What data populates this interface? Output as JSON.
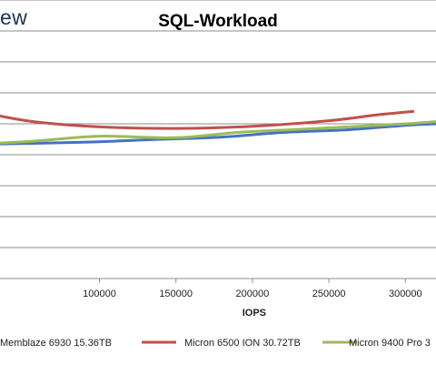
{
  "brand": {
    "text": "ew"
  },
  "chart_data": {
    "type": "line",
    "title": "SQL-Workload",
    "xlabel": "IOPS",
    "ylabel": "",
    "xlim": [
      35000,
      320000
    ],
    "ylim": [
      0,
      9
    ],
    "x_ticks": [
      100000,
      150000,
      200000,
      250000,
      300000
    ],
    "x_tick_labels": [
      "100000",
      "150000",
      "200000",
      "250000",
      "300000"
    ],
    "y_grid": [
      1,
      2,
      3,
      4,
      5,
      6,
      7,
      8,
      9
    ],
    "grid": true,
    "legend_position": "bottom",
    "series": [
      {
        "name": "Memblaze 6930 15.36TB",
        "color": "#4472c4",
        "points": [
          [
            35000,
            4.35
          ],
          [
            60000,
            4.37
          ],
          [
            100000,
            4.42
          ],
          [
            140000,
            4.5
          ],
          [
            180000,
            4.57
          ],
          [
            220000,
            4.72
          ],
          [
            260000,
            4.8
          ],
          [
            300000,
            4.95
          ],
          [
            320000,
            5.0
          ]
        ]
      },
      {
        "name": "Micron 6500 ION 30.72TB",
        "color": "#c0504d",
        "points": [
          [
            35000,
            5.25
          ],
          [
            60000,
            5.05
          ],
          [
            100000,
            4.9
          ],
          [
            150000,
            4.85
          ],
          [
            200000,
            4.92
          ],
          [
            250000,
            5.1
          ],
          [
            280000,
            5.28
          ],
          [
            305000,
            5.4
          ]
        ]
      },
      {
        "name": "Micron 9400 Pro 3",
        "color": "#9bbb59",
        "points": [
          [
            35000,
            4.38
          ],
          [
            60000,
            4.45
          ],
          [
            100000,
            4.6
          ],
          [
            150000,
            4.55
          ],
          [
            190000,
            4.72
          ],
          [
            230000,
            4.82
          ],
          [
            270000,
            4.92
          ],
          [
            300000,
            5.0
          ],
          [
            320000,
            5.07
          ]
        ]
      }
    ]
  }
}
